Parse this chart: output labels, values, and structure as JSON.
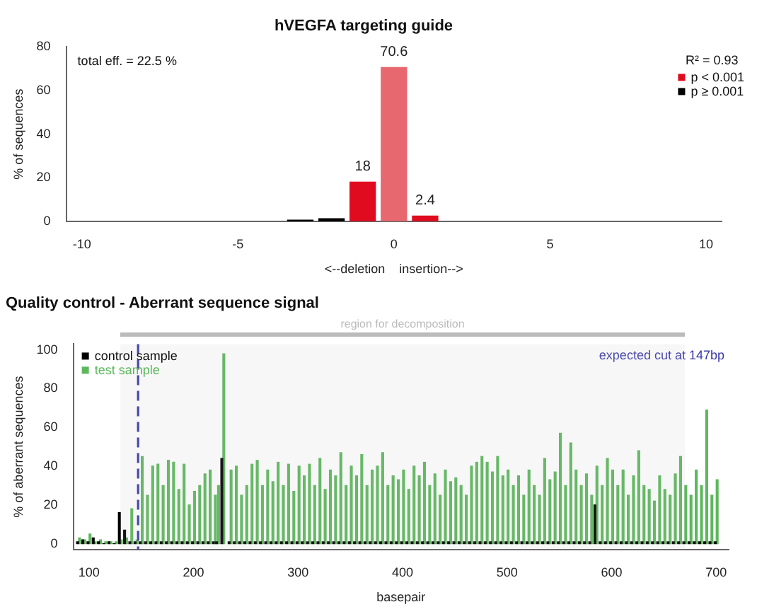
{
  "chart_data": [
    {
      "type": "bar",
      "title": "hVEGFA targeting guide",
      "xlabel": "<--deletion    insertion-->",
      "ylabel": "% of sequences",
      "xlim": [
        -10.5,
        10.5
      ],
      "xticks": [
        -10,
        -5,
        0,
        5,
        10
      ],
      "ylim": [
        0,
        80
      ],
      "yticks": [
        0,
        20,
        40,
        60,
        80
      ],
      "legend": "top right",
      "legend_title": "R² = 0.93",
      "annotations": [
        "total eff. = 22.5 %"
      ],
      "series": [
        {
          "name": "p < 0.001",
          "color": "#e00b1e",
          "colors": [
            "#e00b1e",
            "#e86870",
            "#e00b1e"
          ],
          "x": [
            -1,
            0,
            1
          ],
          "values": [
            18,
            70.6,
            2.4
          ],
          "value_labels": [
            "18",
            "70.6",
            "2.4"
          ]
        },
        {
          "name": "p ≥ 0.001",
          "color": "#000000",
          "x": [
            -3,
            -2
          ],
          "values": [
            0.5,
            1.2
          ]
        }
      ]
    },
    {
      "type": "bar",
      "title": "Quality control - Aberrant sequence signal",
      "xlabel": "basepair",
      "ylabel": "% of aberrant sequences",
      "xlim": [
        85,
        712
      ],
      "xticks": [
        100,
        200,
        300,
        400,
        500,
        600,
        700
      ],
      "ylim": [
        -3,
        103
      ],
      "yticks": [
        0,
        20,
        40,
        60,
        80,
        100
      ],
      "legend": "top left",
      "ref_lines": [
        {
          "axis": "x",
          "value": 147,
          "label": "expected cut at 147bp",
          "color": "#3a3aa8",
          "line_style": "dashed"
        }
      ],
      "bands": [
        {
          "axis": "x",
          "from": 130,
          "to": 670,
          "label": "region for decomposition",
          "color": "#bbbbbb"
        }
      ],
      "x": [
        90,
        95,
        100,
        105,
        110,
        115,
        120,
        125,
        130,
        135,
        140,
        145,
        150,
        155,
        160,
        165,
        170,
        175,
        180,
        185,
        190,
        195,
        200,
        205,
        210,
        215,
        220,
        223,
        228,
        235,
        240,
        245,
        250,
        255,
        260,
        265,
        270,
        275,
        280,
        285,
        290,
        295,
        300,
        305,
        310,
        315,
        320,
        325,
        330,
        335,
        340,
        345,
        350,
        355,
        360,
        365,
        370,
        375,
        380,
        385,
        390,
        395,
        400,
        405,
        410,
        415,
        420,
        425,
        430,
        435,
        440,
        445,
        450,
        455,
        460,
        465,
        470,
        475,
        480,
        485,
        490,
        495,
        500,
        505,
        510,
        515,
        520,
        525,
        530,
        535,
        540,
        545,
        550,
        555,
        560,
        565,
        570,
        575,
        580,
        585,
        590,
        595,
        600,
        605,
        610,
        615,
        620,
        625,
        630,
        635,
        640,
        645,
        650,
        655,
        660,
        665,
        670,
        675,
        680,
        685,
        690,
        695,
        700
      ],
      "series": [
        {
          "name": "test sample",
          "color": "#5cb85c",
          "values": [
            3,
            2,
            5,
            1,
            2,
            1,
            1,
            1,
            2,
            3,
            18,
            2,
            45,
            25,
            40,
            41,
            30,
            43,
            42,
            28,
            41,
            20,
            27,
            30,
            36,
            38,
            25,
            30,
            98,
            38,
            40,
            25,
            30,
            41,
            43,
            30,
            38,
            32,
            42,
            30,
            41,
            27,
            40,
            35,
            41,
            30,
            44,
            28,
            38,
            35,
            47,
            30,
            40,
            35,
            46,
            30,
            38,
            40,
            47,
            30,
            35,
            33,
            38,
            28,
            40,
            35,
            42,
            30,
            36,
            25,
            38,
            32,
            34,
            30,
            25,
            40,
            42,
            45,
            42,
            37,
            45,
            35,
            38,
            30,
            35,
            25,
            38,
            30,
            25,
            44,
            33,
            37,
            57,
            30,
            52,
            38,
            30,
            36,
            25,
            40,
            30,
            44,
            38,
            30,
            38,
            25,
            35,
            48,
            30,
            28,
            22,
            35,
            28,
            25,
            36,
            45,
            30,
            25,
            38,
            30,
            69,
            25,
            33
          ]
        },
        {
          "name": "control sample",
          "color": "#000000",
          "values": [
            1,
            2,
            1,
            3,
            1,
            0,
            1,
            0,
            16,
            7,
            1,
            1,
            1,
            1,
            1,
            1,
            1,
            1,
            1,
            1,
            1,
            1,
            1,
            1,
            1,
            1,
            1,
            1,
            44,
            1,
            1,
            1,
            1,
            1,
            1,
            1,
            1,
            1,
            1,
            1,
            1,
            1,
            1,
            1,
            1,
            1,
            1,
            1,
            1,
            1,
            1,
            1,
            1,
            1,
            1,
            1,
            1,
            1,
            1,
            1,
            1,
            1,
            1,
            1,
            1,
            1,
            1,
            1,
            1,
            1,
            1,
            1,
            1,
            1,
            1,
            1,
            1,
            1,
            1,
            1,
            1,
            1,
            1,
            1,
            1,
            1,
            1,
            1,
            1,
            1,
            1,
            1,
            1,
            1,
            1,
            1,
            1,
            1,
            1,
            20,
            1,
            1,
            1,
            1,
            1,
            1,
            1,
            1,
            1,
            1,
            1,
            1,
            1,
            1,
            1,
            1,
            1,
            1,
            1,
            1,
            1,
            1,
            1
          ]
        }
      ]
    }
  ]
}
